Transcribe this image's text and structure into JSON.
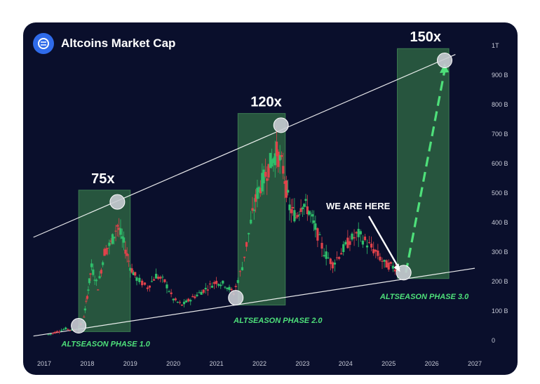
{
  "header": {
    "title": "Altcoins Market Cap",
    "logo_icon": "altcoins-logo-icon"
  },
  "colors": {
    "background": "#0a0f2c",
    "accent": "#4ee07a",
    "phase_box": "#3f8f4f",
    "candle_up": "#2fbf6b",
    "candle_down": "#e0424b",
    "trendline": "#ffffff",
    "marker": "#c9ccd3"
  },
  "chart_data": {
    "type": "candlestick",
    "title": "Altcoins Market Cap",
    "xlabel": "",
    "ylabel": "",
    "x_ticks": [
      "2017",
      "2018",
      "2019",
      "2020",
      "2021",
      "2022",
      "2023",
      "2024",
      "2025",
      "2026",
      "2027"
    ],
    "y_ticks": [
      "0",
      "100 B",
      "200 B",
      "300 B",
      "400 B",
      "500 B",
      "600 B",
      "700 B",
      "800 B",
      "900 B",
      "1T"
    ],
    "xlim": [
      2017,
      2027
    ],
    "ylim": [
      0,
      1000
    ],
    "y_unit": "B",
    "grid": false,
    "series": [
      {
        "values_billions": [
          {
            "t": 2017.1,
            "v": 20
          },
          {
            "t": 2017.3,
            "v": 30
          },
          {
            "t": 2017.5,
            "v": 40
          },
          {
            "t": 2017.7,
            "v": 35
          },
          {
            "t": 2017.9,
            "v": 60
          },
          {
            "t": 2018.0,
            "v": 150
          },
          {
            "t": 2018.1,
            "v": 250
          },
          {
            "t": 2018.25,
            "v": 180
          },
          {
            "t": 2018.4,
            "v": 300
          },
          {
            "t": 2018.55,
            "v": 330
          },
          {
            "t": 2018.7,
            "v": 390
          },
          {
            "t": 2018.85,
            "v": 330
          },
          {
            "t": 2019.0,
            "v": 250
          },
          {
            "t": 2019.15,
            "v": 210
          },
          {
            "t": 2019.4,
            "v": 180
          },
          {
            "t": 2019.6,
            "v": 220
          },
          {
            "t": 2019.8,
            "v": 200
          },
          {
            "t": 2020.0,
            "v": 140
          },
          {
            "t": 2020.2,
            "v": 120
          },
          {
            "t": 2020.4,
            "v": 140
          },
          {
            "t": 2020.6,
            "v": 160
          },
          {
            "t": 2020.8,
            "v": 180
          },
          {
            "t": 2021.0,
            "v": 200
          },
          {
            "t": 2021.2,
            "v": 190
          },
          {
            "t": 2021.4,
            "v": 160
          },
          {
            "t": 2021.6,
            "v": 250
          },
          {
            "t": 2021.8,
            "v": 400
          },
          {
            "t": 2021.95,
            "v": 500
          },
          {
            "t": 2022.1,
            "v": 550
          },
          {
            "t": 2022.25,
            "v": 600
          },
          {
            "t": 2022.4,
            "v": 640
          },
          {
            "t": 2022.55,
            "v": 580
          },
          {
            "t": 2022.7,
            "v": 450
          },
          {
            "t": 2022.85,
            "v": 420
          },
          {
            "t": 2023.0,
            "v": 470
          },
          {
            "t": 2023.15,
            "v": 440
          },
          {
            "t": 2023.3,
            "v": 380
          },
          {
            "t": 2023.5,
            "v": 300
          },
          {
            "t": 2023.7,
            "v": 260
          },
          {
            "t": 2023.9,
            "v": 300
          },
          {
            "t": 2024.1,
            "v": 340
          },
          {
            "t": 2024.3,
            "v": 360
          },
          {
            "t": 2024.5,
            "v": 330
          },
          {
            "t": 2024.7,
            "v": 300
          },
          {
            "t": 2024.9,
            "v": 260
          },
          {
            "t": 2025.1,
            "v": 250
          },
          {
            "t": 2025.3,
            "v": 240
          }
        ],
        "projection": [
          {
            "t": 2025.4,
            "v": 230
          },
          {
            "t": 2026.3,
            "v": 950
          }
        ]
      }
    ],
    "phases": [
      {
        "label": "ALTSEASON PHASE 1.0",
        "start": 2017.8,
        "end": 2019.0,
        "low": 50,
        "high": 470,
        "multiplier": "75x"
      },
      {
        "label": "ALTSEASON PHASE 2.0",
        "start": 2021.5,
        "end": 2022.6,
        "low": 140,
        "high": 730,
        "multiplier": "120x"
      },
      {
        "label": "ALTSEASON PHASE 3.0",
        "start": 2025.2,
        "end": 2026.4,
        "low": 230,
        "high": 950,
        "multiplier": "150x"
      }
    ],
    "trendlines": {
      "upper": [
        {
          "t": 2016.75,
          "v": 350
        },
        {
          "t": 2026.55,
          "v": 970
        }
      ],
      "lower": [
        {
          "t": 2016.75,
          "v": 15
        },
        {
          "t": 2027.0,
          "v": 245
        }
      ]
    },
    "markers": [
      {
        "t": 2017.8,
        "v": 50
      },
      {
        "t": 2018.7,
        "v": 470
      },
      {
        "t": 2021.45,
        "v": 145
      },
      {
        "t": 2022.5,
        "v": 730
      },
      {
        "t": 2025.35,
        "v": 230
      },
      {
        "t": 2026.3,
        "v": 950
      }
    ],
    "annotations": [
      {
        "text": "WE ARE HERE",
        "t": 2025.2,
        "v": 290
      }
    ]
  }
}
